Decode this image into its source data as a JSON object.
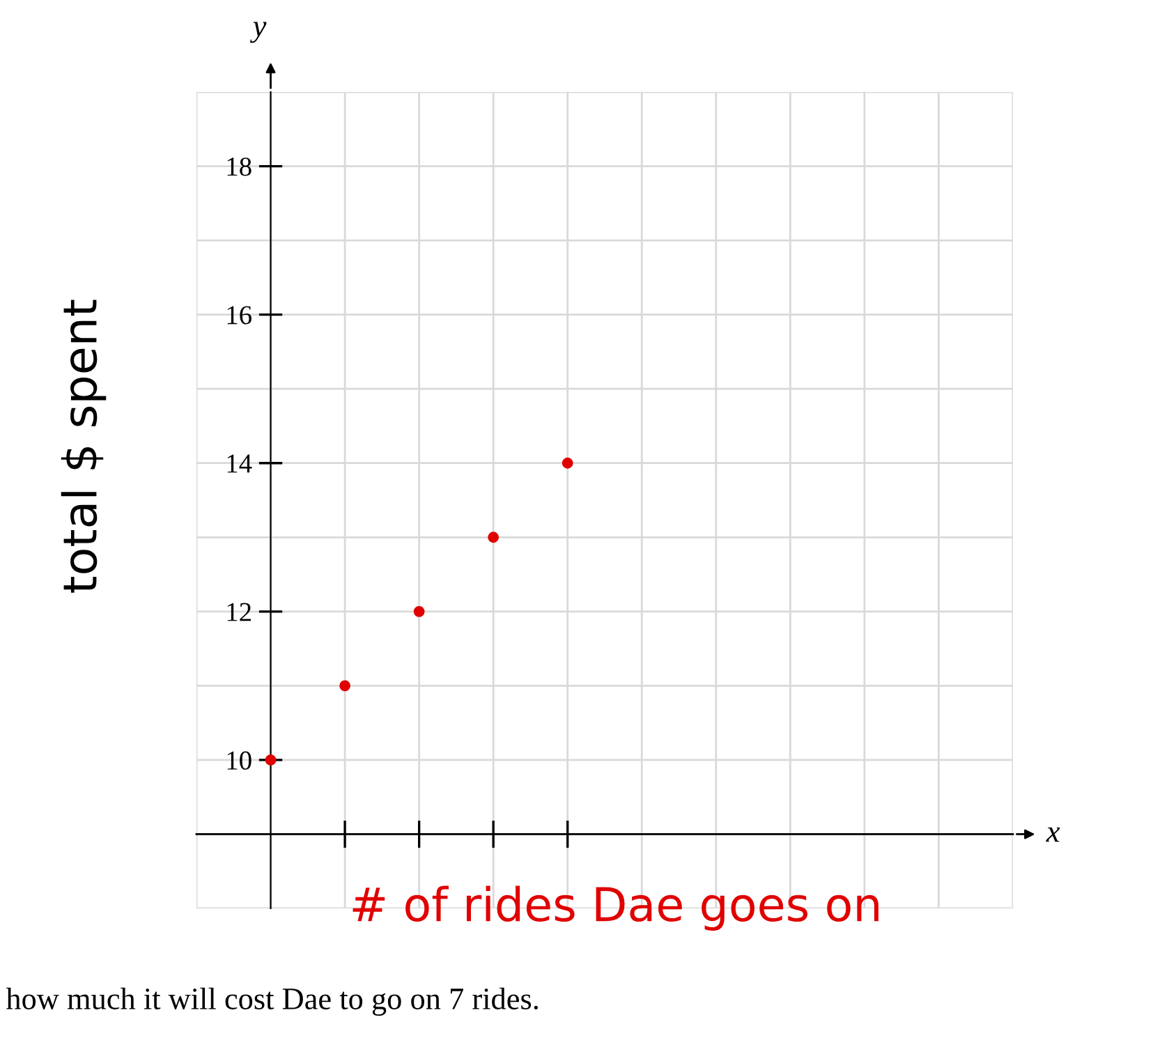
{
  "chart_data": {
    "type": "scatter",
    "xlabel": "x",
    "ylabel": "y",
    "categories": [
      null,
      null,
      null,
      null,
      null,
      null,
      null,
      null,
      null,
      null,
      null,
      null
    ],
    "series": [
      {
        "color": "#e00000",
        "values": [
          null,
          10,
          11,
          12,
          13,
          14,
          null,
          null,
          null,
          null,
          null,
          null
        ]
      }
    ],
    "ylim": [
      8,
      19
    ],
    "yticks": [
      10,
      12,
      14,
      16,
      18
    ],
    "ref_lines": [
      {
        "axis": "y",
        "value": 9,
        "color": "#000000"
      }
    ],
    "tick_labels": "y",
    "grid": true,
    "marker": "circle",
    "annotations": [
      "total $ spent",
      "# of rides Dae goes on",
      "how much it will cost Dae to go on 7 rides."
    ]
  }
}
